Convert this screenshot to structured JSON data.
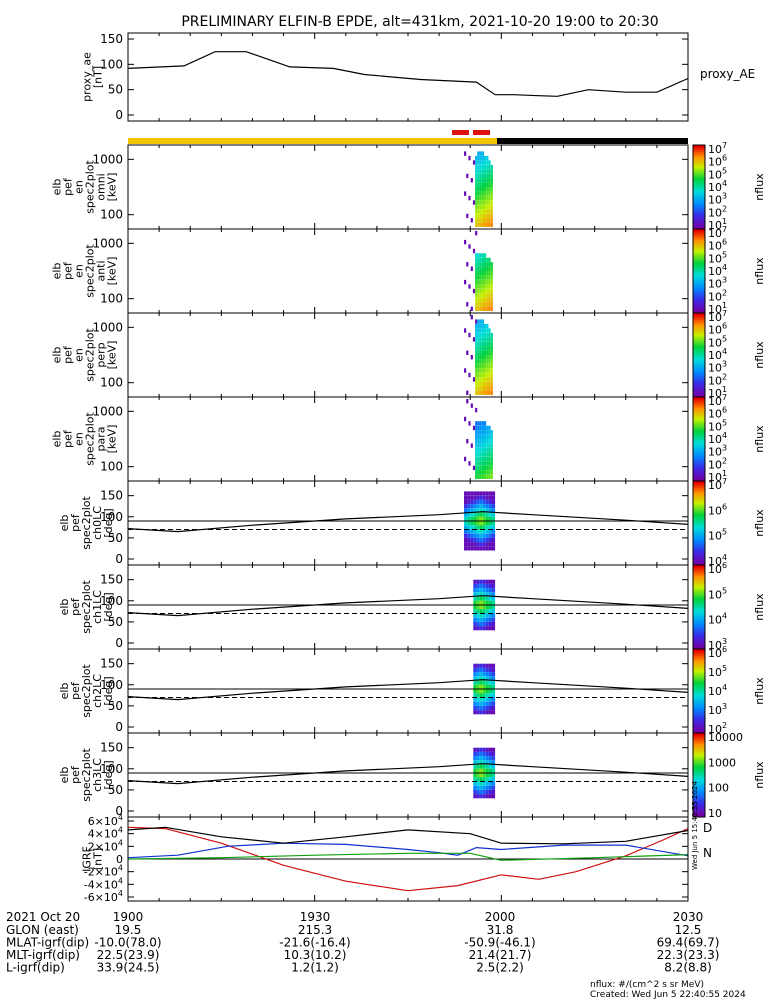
{
  "title": "PRELIMINARY ELFIN-B EPDE, alt=431km, 2021-10-20 19:00 to 20:30",
  "time_axis": {
    "tick_labels": [
      "1900",
      "1930",
      "2000",
      "2030"
    ],
    "date_label": "2021 Oct 20",
    "rows": [
      {
        "label": "GLON (east)",
        "values": [
          "19.5",
          "215.3",
          "31.8",
          "12.5"
        ]
      },
      {
        "label": "MLAT-igrf(dip)",
        "values": [
          "-10.0(78.0)",
          "-21.6(-16.4)",
          "-50.9(-46.1)",
          "69.4(69.7)"
        ]
      },
      {
        "label": "MLT-igrf(dip)",
        "values": [
          "22.5(23.9)",
          "10.3(10.2)",
          "21.4(21.7)",
          "22.3(23.3)"
        ]
      },
      {
        "label": "L-igrf(dip)",
        "values": [
          "33.9(24.5)",
          "1.2(1.2)",
          "2.5(2.2)",
          "8.2(8.8)"
        ]
      }
    ]
  },
  "footer": {
    "units": "nflux: #/(cm^2 s sr MeV)",
    "created": "Created: Wed Jun  5 22:40:55 2024"
  },
  "side_stamp": "Wed Jun  5 15:40:55 2024",
  "status_bar": {
    "colors": [
      "#f2c600",
      "#000000",
      "#e01010"
    ]
  },
  "panels": [
    {
      "ylabel": [
        "proxy_ae",
        "[nT]"
      ],
      "ticks": [
        "0",
        "50",
        "100",
        "150"
      ],
      "right_label": "proxy_AE"
    },
    {
      "ylabel": [
        "elb",
        "pef",
        "en",
        "spec2plot",
        "omni",
        "[keV]"
      ],
      "ticks": [
        "100",
        "1000"
      ],
      "cb_label": "nflux",
      "cb_ticks": [
        "10^1",
        "10^2",
        "10^3",
        "10^4",
        "10^5",
        "10^6",
        "10^7"
      ]
    },
    {
      "ylabel": [
        "elb",
        "pef",
        "en",
        "spec2plot",
        "anti",
        "[keV]"
      ],
      "ticks": [
        "100",
        "1000"
      ],
      "cb_label": "nflux",
      "cb_ticks": [
        "10^1",
        "10^2",
        "10^3",
        "10^4",
        "10^5",
        "10^6",
        "10^7"
      ]
    },
    {
      "ylabel": [
        "elb",
        "pef",
        "en",
        "spec2plot",
        "perp",
        "[keV]"
      ],
      "ticks": [
        "100",
        "1000"
      ],
      "cb_label": "nflux",
      "cb_ticks": [
        "10^1",
        "10^2",
        "10^3",
        "10^4",
        "10^5",
        "10^6",
        "10^7"
      ]
    },
    {
      "ylabel": [
        "elb",
        "pef",
        "en",
        "spec2plot",
        "para",
        "[keV]"
      ],
      "ticks": [
        "100",
        "1000"
      ],
      "cb_label": "nflux",
      "cb_ticks": [
        "10^1",
        "10^2",
        "10^3",
        "10^4",
        "10^5",
        "10^6",
        "10^7"
      ]
    },
    {
      "ylabel": [
        "elb",
        "pef",
        "spec2plot",
        "ch0LC",
        "[deg]"
      ],
      "ticks": [
        "0",
        "50",
        "100",
        "150"
      ],
      "cb_label": "nflux",
      "cb_ticks": [
        "10^4",
        "10^5",
        "10^6",
        "10^7"
      ]
    },
    {
      "ylabel": [
        "elb",
        "pef",
        "spec2plot",
        "ch1LC",
        "[deg]"
      ],
      "ticks": [
        "0",
        "50",
        "100",
        "150"
      ],
      "cb_label": "nflux",
      "cb_ticks": [
        "10^3",
        "10^4",
        "10^5",
        "10^6"
      ]
    },
    {
      "ylabel": [
        "elb",
        "pef",
        "spec2plot",
        "ch2LC",
        "[deg]"
      ],
      "ticks": [
        "0",
        "50",
        "100",
        "150"
      ],
      "cb_label": "nflux",
      "cb_ticks": [
        "10^2",
        "10^3",
        "10^4",
        "10^5",
        "10^6"
      ]
    },
    {
      "ylabel": [
        "elb",
        "pef",
        "spec2plot",
        "ch3LC",
        "[deg]"
      ],
      "ticks": [
        "0",
        "50",
        "100",
        "150"
      ],
      "cb_label": "nflux",
      "cb_ticks": [
        "10",
        "100",
        "1000",
        "10000"
      ]
    },
    {
      "ylabel": [
        "IGRF",
        "[nT]"
      ],
      "ticks": [
        "-6×10^4",
        "-4×10^4",
        "-2×10^4",
        "0",
        "2×10^4",
        "4×10^4",
        "6×10^4"
      ],
      "legend": [
        "D",
        "N"
      ]
    }
  ],
  "chart_data": {
    "type": "line",
    "x_range": [
      "19:00",
      "20:30"
    ],
    "series": [
      {
        "name": "proxy_AE",
        "x": [
          "19:00",
          "19:09",
          "19:14",
          "19:19",
          "19:26",
          "19:33",
          "19:38",
          "19:47",
          "19:56",
          "19:59",
          "20:02",
          "20:06",
          "20:09",
          "20:14",
          "20:20",
          "20:25",
          "20:30"
        ],
        "values": [
          92,
          97,
          125,
          125,
          95,
          92,
          80,
          70,
          65,
          40,
          40,
          38,
          37,
          50,
          45,
          45,
          72
        ]
      },
      {
        "name": "D",
        "x": [
          "19:00",
          "19:06",
          "19:15",
          "19:25",
          "19:35",
          "19:45",
          "19:53",
          "20:00",
          "20:06",
          "20:12",
          "20:20",
          "20:26",
          "20:30"
        ],
        "values": [
          50000,
          48000,
          25000,
          -10000,
          -35000,
          -50000,
          -42000,
          -25000,
          -32000,
          -20000,
          5000,
          30000,
          48000
        ]
      },
      {
        "name": "N",
        "x": [
          "19:00",
          "19:08",
          "19:16",
          "19:25",
          "19:35",
          "19:45",
          "19:50",
          "19:53",
          "19:56",
          "20:00",
          "20:10",
          "20:20",
          "20:30"
        ],
        "values": [
          2000,
          6000,
          20000,
          25000,
          23000,
          15000,
          10000,
          6000,
          18000,
          15000,
          22000,
          22000,
          5000
        ]
      },
      {
        "name": "",
        "x": [
          "19:00",
          "19:06",
          "19:15",
          "19:25",
          "19:35",
          "19:45",
          "19:55",
          "20:00",
          "20:10",
          "20:20",
          "20:30"
        ],
        "values": [
          46000,
          50000,
          35000,
          25000,
          35000,
          46000,
          40000,
          25000,
          24000,
          28000,
          45000
        ]
      },
      {
        "name": "",
        "x": [
          "19:00",
          "19:15",
          "19:30",
          "19:45",
          "19:55",
          "20:00",
          "20:15",
          "20:30"
        ],
        "values": [
          0,
          2000,
          6000,
          9000,
          9000,
          -2000,
          2000,
          7000
        ]
      },
      {
        "name": "",
        "x": [
          "19:00",
          "19:08",
          "19:20",
          "19:35",
          "19:50",
          "19:57",
          "20:05",
          "20:20",
          "20:30"
        ],
        "values": [
          72,
          65,
          80,
          95,
          105,
          112,
          105,
          92,
          82
        ]
      }
    ],
    "spectrogram_window": [
      "19:54",
      "19:59"
    ],
    "angle_axis": {
      "ylim": [
        0,
        180
      ],
      "reference_lines": [
        90,
        70
      ]
    },
    "energy_axis": {
      "scale": "log",
      "ticks": [
        100,
        1000
      ]
    },
    "igrf_axis": {
      "ylim": [
        -60000,
        60000
      ]
    }
  }
}
